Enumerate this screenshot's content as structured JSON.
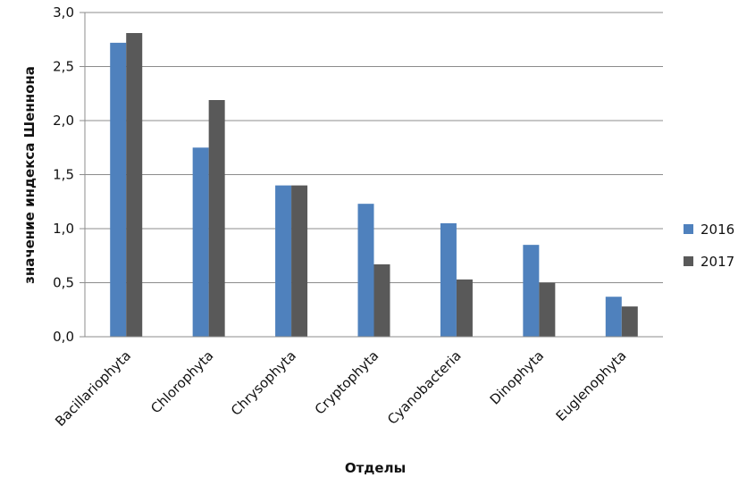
{
  "chart_data": {
    "type": "bar",
    "categories": [
      "Bacillariophyta",
      "Chlorophyta",
      "Chrysophyta",
      "Cryptophyta",
      "Cyanobacteria",
      "Dinophyta",
      "Euglenophyta"
    ],
    "series": [
      {
        "name": "2016",
        "color": "#4f81bd",
        "values": [
          2.72,
          1.75,
          1.4,
          1.23,
          1.05,
          0.85,
          0.37
        ]
      },
      {
        "name": "2017",
        "color": "#595959",
        "values": [
          2.81,
          2.19,
          1.4,
          0.67,
          0.53,
          0.5,
          0.28
        ]
      }
    ],
    "xlabel": "Отделы",
    "ylabel": "значение индекса Шеннона",
    "ylim": [
      0,
      3.0
    ],
    "yticks": [
      "0,0",
      "0,5",
      "1,0",
      "1,5",
      "2,0",
      "2,5",
      "3,0"
    ],
    "grid": true,
    "legend_position": "right"
  }
}
